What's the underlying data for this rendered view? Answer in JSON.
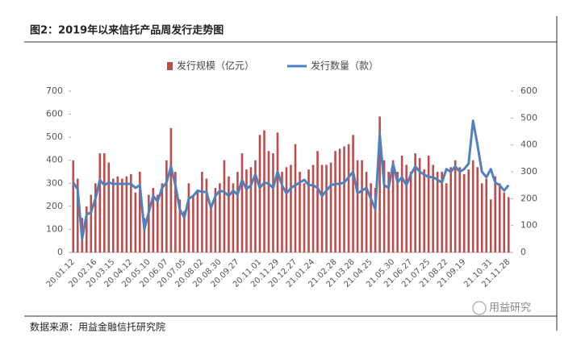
{
  "chart_data": {
    "type": "bar-line",
    "title": "图2：2019年以来信托产品周发行走势图",
    "source": "数据来源：用益金融信托研究院",
    "watermark": "用益研究",
    "categories": [
      "20.01.12",
      null,
      null,
      null,
      null,
      "20.02.16",
      null,
      null,
      null,
      "20.03.15",
      null,
      null,
      null,
      "20.04.12",
      null,
      null,
      null,
      "20.05.10",
      null,
      null,
      null,
      "20.06.07",
      null,
      null,
      null,
      "20.07.05",
      null,
      null,
      null,
      "20.08.02",
      null,
      null,
      null,
      "20.08.30",
      null,
      null,
      null,
      "20.09.27",
      null,
      null,
      null,
      null,
      "20.11.01",
      null,
      null,
      null,
      "20.11.29",
      null,
      null,
      null,
      "20.12.27",
      null,
      null,
      null,
      "21.01.24",
      null,
      null,
      null,
      null,
      "21.02.28",
      null,
      null,
      null,
      "21.03.28",
      null,
      null,
      null,
      "21.04.25",
      null,
      null,
      null,
      null,
      "21.05.30",
      null,
      null,
      null,
      "21.06.27",
      null,
      null,
      null,
      "21.07.25",
      null,
      null,
      null,
      "21.08.22",
      null,
      null,
      null,
      "21.09.19",
      null,
      null,
      null,
      null,
      null,
      "21.10.31",
      null,
      null,
      null,
      "21.11.28"
    ],
    "series": [
      {
        "name": "发行规模（亿元）",
        "type": "bar",
        "color": "#bf4b4b",
        "values": [
          400,
          320,
          150,
          200,
          250,
          300,
          430,
          430,
          390,
          320,
          330,
          320,
          330,
          340,
          260,
          350,
          150,
          250,
          280,
          250,
          300,
          400,
          540,
          350,
          230,
          180,
          300,
          250,
          270,
          350,
          320,
          200,
          280,
          300,
          400,
          330,
          300,
          350,
          430,
          360,
          370,
          400,
          510,
          530,
          440,
          430,
          520,
          350,
          370,
          380,
          470,
          350,
          300,
          360,
          380,
          440,
          380,
          380,
          390,
          440,
          450,
          460,
          470,
          510,
          400,
          400,
          350,
          300,
          280,
          590,
          400,
          350,
          400,
          350,
          420,
          380,
          350,
          430,
          410,
          360,
          420,
          380,
          350,
          350,
          300,
          370,
          400,
          370,
          340,
          360,
          400,
          370,
          300,
          320,
          230,
          330,
          300,
          260,
          240
        ]
      },
      {
        "name": "发行数量（款）",
        "type": "line",
        "axis": "y2",
        "color": "#4f81bd",
        "values": [
          260,
          235,
          50,
          140,
          150,
          200,
          270,
          250,
          260,
          255,
          255,
          255,
          255,
          255,
          240,
          250,
          85,
          150,
          210,
          190,
          240,
          260,
          320,
          250,
          160,
          130,
          200,
          210,
          230,
          225,
          225,
          165,
          210,
          230,
          225,
          210,
          230,
          215,
          270,
          235,
          250,
          290,
          240,
          260,
          255,
          240,
          300,
          250,
          220,
          240,
          250,
          260,
          270,
          250,
          250,
          240,
          210,
          230,
          250,
          255,
          255,
          260,
          280,
          300,
          220,
          230,
          240,
          200,
          160,
          440,
          250,
          240,
          330,
          260,
          280,
          250,
          290,
          320,
          300,
          290,
          280,
          280,
          270,
          260,
          310,
          300,
          320,
          300,
          310,
          330,
          490,
          400,
          300,
          280,
          310,
          260,
          250,
          230,
          250
        ]
      }
    ],
    "ylim": [
      0,
      700
    ],
    "yticks": [
      0,
      100,
      200,
      300,
      400,
      500,
      600,
      700
    ],
    "y2lim": [
      0,
      600
    ],
    "y2ticks": [
      0,
      100,
      200,
      300,
      400,
      500,
      600
    ],
    "legend": "top"
  }
}
